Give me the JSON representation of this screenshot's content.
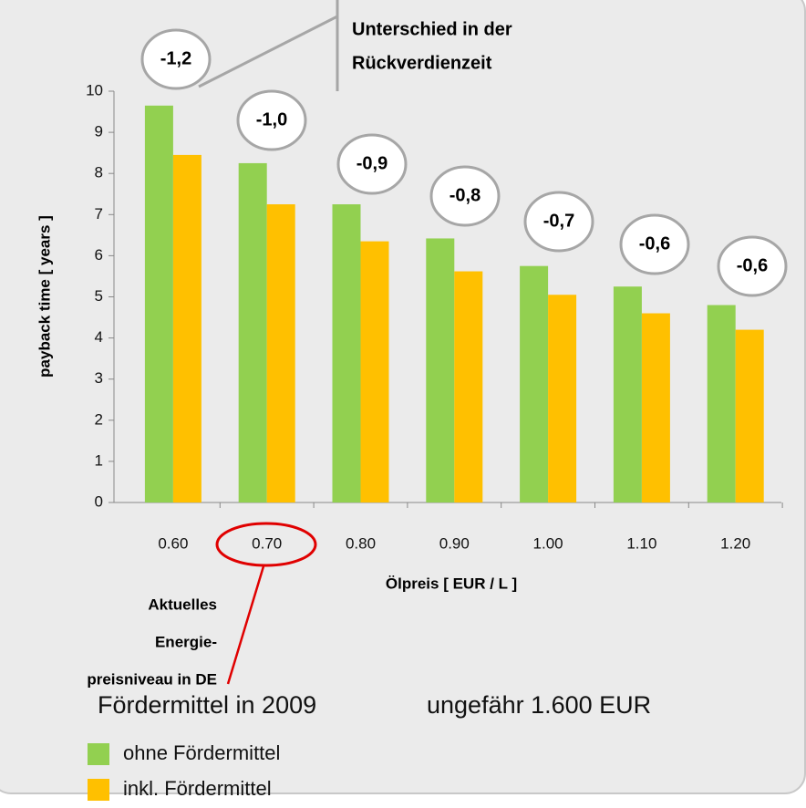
{
  "chart_data": {
    "type": "bar",
    "categories": [
      "0.60",
      "0.70",
      "0.80",
      "0.90",
      "1.00",
      "1.10",
      "1.20"
    ],
    "series": [
      {
        "name": "ohne Fördermittel",
        "color": "#92d050",
        "values": [
          9.65,
          8.25,
          7.25,
          6.42,
          5.75,
          5.25,
          4.8
        ]
      },
      {
        "name": "inkl. Fördermittel",
        "color": "#ffc000",
        "values": [
          8.45,
          7.25,
          6.35,
          5.62,
          5.05,
          4.6,
          4.2
        ]
      }
    ],
    "ylim": [
      0,
      10
    ],
    "yticks": [
      0,
      1,
      2,
      3,
      4,
      5,
      6,
      7,
      8,
      9,
      10
    ],
    "xlabel": "Ölpreis [ EUR / L ]",
    "ylabel": "payback time [ years ]",
    "differences": [
      "-1,2",
      "-1,0",
      "-0,9",
      "-0,8",
      "-0,7",
      "-0,6",
      "-0,6"
    ],
    "difference_title": [
      "Unterschied in der",
      "Rückverdienzeit"
    ],
    "highlight_note": [
      "Aktuelles",
      "Energie-",
      "preisniveau in DE"
    ],
    "funding_label": "Fördermittel in 2009",
    "funding_value": "ungefähr  1.600 EUR",
    "grid": false
  }
}
